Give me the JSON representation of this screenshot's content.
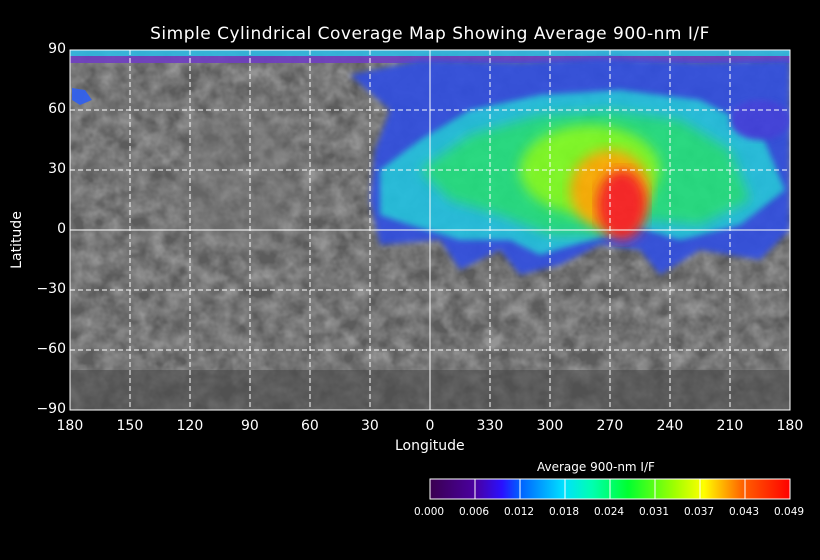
{
  "title": "Simple Cylindrical Coverage Map Showing Average 900-nm I/F",
  "chart_data": {
    "type": "heatmap",
    "title": "Simple Cylindrical Coverage Map Showing Average 900-nm I/F",
    "xlabel": "Longitude",
    "ylabel": "Latitude",
    "x_tick_labels": [
      "180",
      "150",
      "120",
      "90",
      "60",
      "30",
      "0",
      "330",
      "300",
      "270",
      "240",
      "210",
      "180"
    ],
    "y_tick_labels": [
      "90",
      "60",
      "30",
      "0",
      "−30",
      "−60",
      "−90"
    ],
    "ylim": [
      -90,
      90
    ],
    "grid": true,
    "colorbar": {
      "title": "Average 900-nm I/F",
      "tick_labels": [
        "0.000",
        "0.006",
        "0.012",
        "0.018",
        "0.024",
        "0.031",
        "0.037",
        "0.043",
        "0.049"
      ],
      "range": [
        0.0,
        0.049
      ],
      "colors": [
        "#3a0050",
        "#2a10ff",
        "#0090ff",
        "#00ffd0",
        "#00ff00",
        "#a0ff00",
        "#ffa000",
        "#ff0000"
      ]
    },
    "coverage_peak": {
      "lon_range": [
        265,
        290
      ],
      "lat_range": [
        0,
        30
      ],
      "value_approx": 0.045
    }
  }
}
